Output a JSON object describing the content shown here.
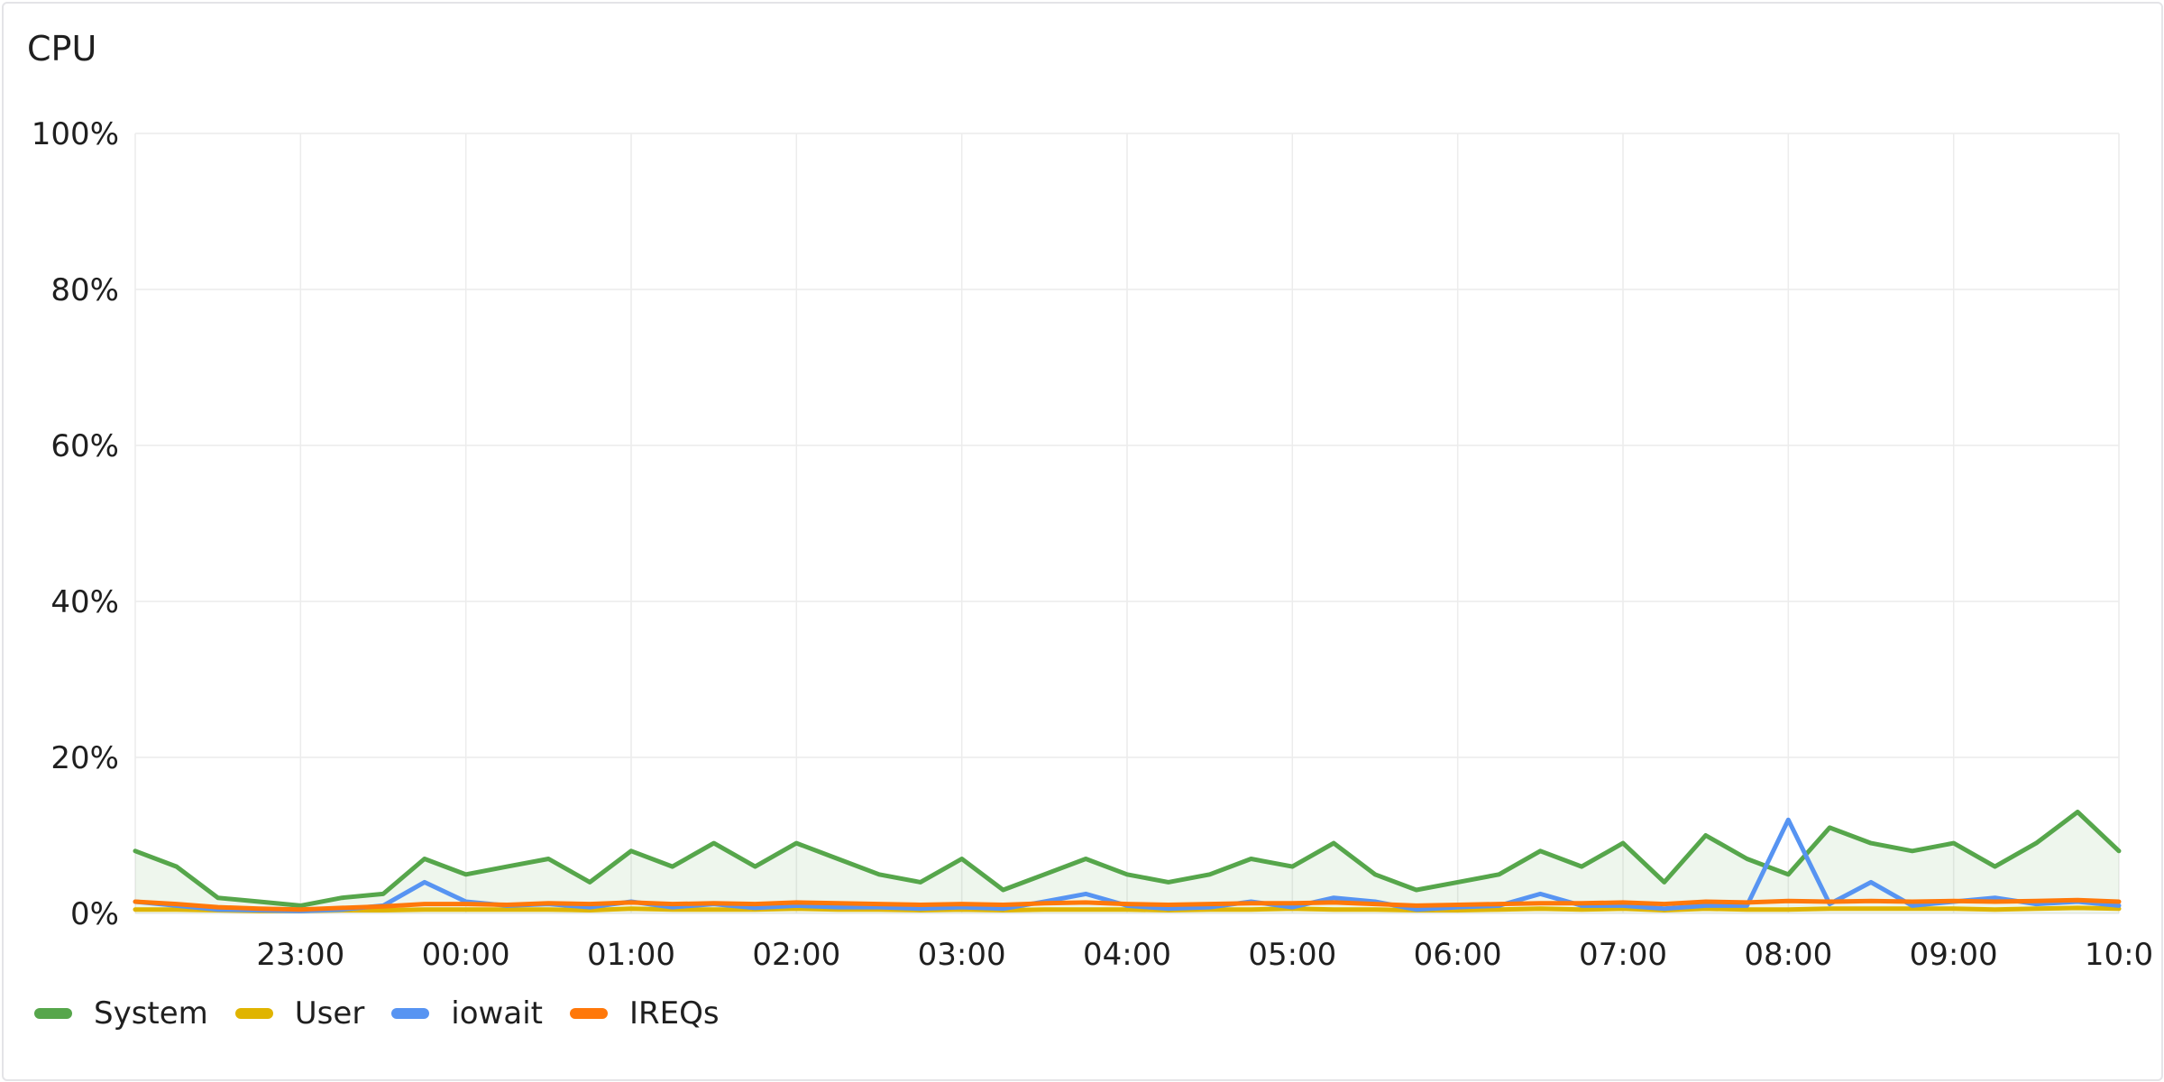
{
  "panel": {
    "title": "CPU"
  },
  "chart_data": {
    "type": "line",
    "title": "CPU",
    "xlabel": "",
    "ylabel": "",
    "y_ticks": [
      "0%",
      "20%",
      "40%",
      "60%",
      "80%",
      "100%"
    ],
    "ylim": [
      0,
      100
    ],
    "x_ticks": [
      "23:00",
      "00:00",
      "01:00",
      "02:00",
      "03:00",
      "04:00",
      "05:00",
      "06:00",
      "07:00",
      "08:00",
      "09:00",
      "10:0"
    ],
    "xlim": [
      "22:00",
      "10:00"
    ],
    "grid": true,
    "legend_position": "bottom-left",
    "x": [
      "22:00",
      "22:15",
      "22:30",
      "22:45",
      "23:00",
      "23:15",
      "23:30",
      "23:45",
      "00:00",
      "00:15",
      "00:30",
      "00:45",
      "01:00",
      "01:15",
      "01:30",
      "01:45",
      "02:00",
      "02:15",
      "02:30",
      "02:45",
      "03:00",
      "03:15",
      "03:30",
      "03:45",
      "04:00",
      "04:15",
      "04:30",
      "04:45",
      "05:00",
      "05:15",
      "05:30",
      "05:45",
      "06:00",
      "06:15",
      "06:30",
      "06:45",
      "07:00",
      "07:15",
      "07:30",
      "07:45",
      "08:00",
      "08:15",
      "08:30",
      "08:45",
      "09:00",
      "09:15",
      "09:30",
      "09:45",
      "10:00"
    ],
    "series": [
      {
        "name": "System",
        "color": "#56a64b",
        "fill": true,
        "values": [
          8,
          6,
          2,
          1.5,
          1,
          2,
          2.5,
          7,
          5,
          6,
          7,
          4,
          8,
          6,
          9,
          6,
          9,
          7,
          5,
          4,
          7,
          3,
          5,
          7,
          5,
          4,
          5,
          7,
          6,
          9,
          5,
          3,
          4,
          5,
          8,
          6,
          9,
          4,
          10,
          7,
          5,
          11,
          9,
          8,
          9,
          6,
          9,
          13,
          8
        ]
      },
      {
        "name": "User",
        "color": "#e0b400",
        "values": [
          0.5,
          0.5,
          0.4,
          0.3,
          0.3,
          0.4,
          0.4,
          0.5,
          0.5,
          0.5,
          0.5,
          0.4,
          0.6,
          0.5,
          0.5,
          0.5,
          0.6,
          0.5,
          0.5,
          0.4,
          0.5,
          0.4,
          0.5,
          0.5,
          0.5,
          0.4,
          0.5,
          0.5,
          0.6,
          0.5,
          0.5,
          0.4,
          0.4,
          0.5,
          0.6,
          0.5,
          0.6,
          0.4,
          0.6,
          0.5,
          0.5,
          0.6,
          0.6,
          0.6,
          0.6,
          0.5,
          0.6,
          0.7,
          0.6
        ]
      },
      {
        "name": "iowait",
        "color": "#5794f2",
        "values": [
          1.5,
          1,
          0.5,
          0.4,
          0.3,
          0.5,
          1,
          4,
          1.5,
          1,
          1.2,
          0.8,
          1.5,
          0.8,
          1.2,
          0.7,
          1,
          0.8,
          0.8,
          0.6,
          0.8,
          0.6,
          1.5,
          2.5,
          1,
          0.6,
          0.8,
          1.5,
          0.8,
          2,
          1.5,
          0.5,
          0.8,
          1,
          2.5,
          1,
          1,
          0.6,
          1,
          1,
          12,
          1.2,
          4,
          1,
          1.5,
          2,
          1.2,
          1.5,
          1
        ]
      },
      {
        "name": "IREQs",
        "color": "#ff780a",
        "values": [
          1.5,
          1.2,
          0.8,
          0.6,
          0.5,
          0.7,
          0.9,
          1.2,
          1.2,
          1.1,
          1.3,
          1.2,
          1.4,
          1.2,
          1.3,
          1.2,
          1.4,
          1.3,
          1.2,
          1.1,
          1.2,
          1.1,
          1.3,
          1.4,
          1.2,
          1.1,
          1.2,
          1.3,
          1.3,
          1.4,
          1.2,
          1,
          1.1,
          1.2,
          1.3,
          1.3,
          1.4,
          1.2,
          1.5,
          1.4,
          1.6,
          1.5,
          1.6,
          1.5,
          1.6,
          1.5,
          1.6,
          1.7,
          1.5
        ]
      }
    ]
  }
}
